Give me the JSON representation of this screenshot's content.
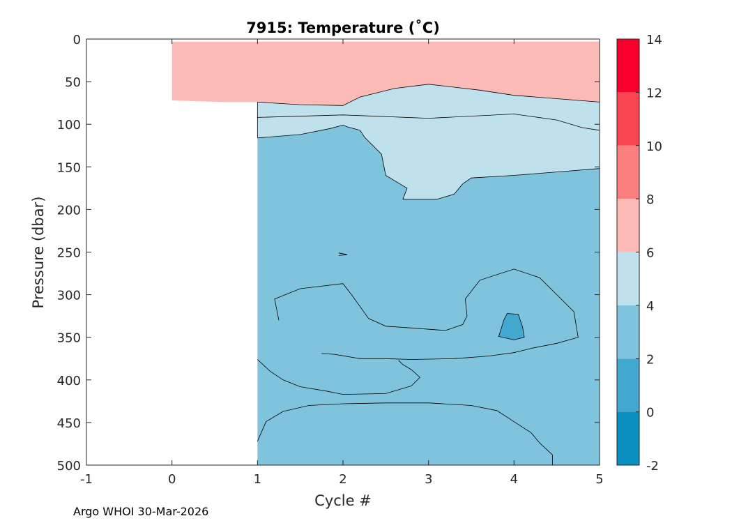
{
  "chart_data": {
    "type": "heatmap",
    "subtype": "filled-contour",
    "title": "7915:  Temperature (˚C)",
    "xlabel": "Cycle #",
    "ylabel": "Pressure (dbar)",
    "xlim": [
      -1,
      5
    ],
    "ylim": [
      0,
      500
    ],
    "y_reversed": true,
    "x_ticks": [
      "-1",
      "0",
      "1",
      "2",
      "3",
      "4",
      "5"
    ],
    "y_ticks": [
      "0",
      "50",
      "100",
      "150",
      "200",
      "250",
      "300",
      "350",
      "400",
      "450",
      "500"
    ],
    "colorbar": {
      "range": [
        -2,
        14
      ],
      "tick_labels": [
        "-2",
        "0",
        "2",
        "4",
        "6",
        "8",
        "10",
        "12",
        "14"
      ],
      "bins": [
        {
          "from": -2,
          "to": 0,
          "color": "#0a8ebf"
        },
        {
          "from": 0,
          "to": 2,
          "color": "#42a8cf"
        },
        {
          "from": 2,
          "to": 4,
          "color": "#7fc3dd"
        },
        {
          "from": 4,
          "to": 6,
          "color": "#bfe1ec"
        },
        {
          "from": 6,
          "to": 8,
          "color": "#fdbbb7"
        },
        {
          "from": 8,
          "to": 10,
          "color": "#fa7f7f"
        },
        {
          "from": 10,
          "to": 12,
          "color": "#f94550"
        },
        {
          "from": 12,
          "to": 14,
          "color": "#f7002b"
        }
      ]
    },
    "regions": [
      {
        "level": "6-8",
        "outline": [
          [
            0,
            3
          ],
          [
            5,
            3
          ],
          [
            5,
            74
          ],
          [
            4.5,
            70
          ],
          [
            4,
            66
          ],
          [
            3.6,
            60
          ],
          [
            3,
            53
          ],
          [
            2.6,
            58
          ],
          [
            2.2,
            68
          ],
          [
            2,
            78
          ],
          [
            1.5,
            77
          ],
          [
            1,
            74
          ],
          [
            0.6,
            74
          ],
          [
            0,
            72
          ]
        ]
      },
      {
        "level": "4-6",
        "outline": [
          [
            1,
            74
          ],
          [
            1.5,
            77
          ],
          [
            2,
            78
          ],
          [
            2.2,
            68
          ],
          [
            2.6,
            58
          ],
          [
            3,
            53
          ],
          [
            3.6,
            60
          ],
          [
            4,
            66
          ],
          [
            4.5,
            70
          ],
          [
            5,
            74
          ],
          [
            5,
            152
          ],
          [
            4.5,
            156
          ],
          [
            4,
            160
          ],
          [
            3.5,
            163
          ],
          [
            3.4,
            170
          ],
          [
            3.3,
            182
          ],
          [
            3.1,
            188
          ],
          [
            2.7,
            188
          ],
          [
            2.75,
            175
          ],
          [
            2.5,
            160
          ],
          [
            2.45,
            135
          ],
          [
            2.25,
            115
          ],
          [
            2.2,
            107
          ],
          [
            2.05,
            103
          ],
          [
            2,
            101
          ],
          [
            1.85,
            105
          ],
          [
            1.5,
            112
          ],
          [
            1,
            116
          ]
        ]
      },
      {
        "level": "0-2",
        "outline": [
          [
            3.92,
            322
          ],
          [
            4.05,
            323
          ],
          [
            4.1,
            338
          ],
          [
            4.12,
            350
          ],
          [
            4.0,
            353
          ],
          [
            3.82,
            349
          ],
          [
            3.85,
            340
          ],
          [
            3.88,
            330
          ]
        ]
      }
    ],
    "contour_lines": [
      {
        "level": 4,
        "points": [
          [
            1,
            92
          ],
          [
            2,
            89
          ],
          [
            3,
            93
          ],
          [
            4,
            88
          ],
          [
            4.5,
            95
          ],
          [
            4.8,
            104
          ],
          [
            5,
            107
          ]
        ]
      },
      {
        "level": 4,
        "points": [
          [
            1.25,
            330
          ],
          [
            1.2,
            305
          ],
          [
            1.5,
            293
          ],
          [
            2,
            287
          ],
          [
            2.1,
            300
          ],
          [
            2.3,
            328
          ],
          [
            2.5,
            337
          ],
          [
            2.8,
            339
          ],
          [
            3.2,
            342
          ],
          [
            3.4,
            335
          ],
          [
            3.45,
            325
          ],
          [
            3.43,
            305
          ],
          [
            3.6,
            283
          ],
          [
            4,
            270
          ],
          [
            4.3,
            280
          ],
          [
            4.5,
            300
          ],
          [
            4.7,
            320
          ],
          [
            4.75,
            350
          ],
          [
            4.5,
            357
          ],
          [
            4.2,
            363
          ],
          [
            4,
            368
          ],
          [
            3.7,
            372
          ],
          [
            3.3,
            375
          ],
          [
            2.8,
            376
          ],
          [
            2.5,
            375
          ],
          [
            2.2,
            375
          ],
          [
            1.9,
            370
          ],
          [
            1.75,
            369
          ]
        ]
      },
      {
        "level": 4,
        "points": [
          [
            1,
            376
          ],
          [
            1.15,
            390
          ],
          [
            1.3,
            400
          ],
          [
            1.5,
            408
          ],
          [
            1.8,
            413
          ],
          [
            2,
            417
          ],
          [
            2.5,
            416
          ],
          [
            2.8,
            407
          ],
          [
            2.9,
            397
          ],
          [
            2.8,
            388
          ],
          [
            2.7,
            382
          ],
          [
            2.65,
            377
          ]
        ]
      },
      {
        "level": 4,
        "points": [
          [
            1,
            472
          ],
          [
            1.1,
            449
          ],
          [
            1.3,
            437
          ],
          [
            1.6,
            430
          ],
          [
            2,
            428
          ],
          [
            2.5,
            427
          ],
          [
            3,
            427
          ],
          [
            3.5,
            430
          ],
          [
            3.8,
            436
          ],
          [
            4.0,
            449
          ],
          [
            4.2,
            462
          ],
          [
            4.3,
            474
          ],
          [
            4.45,
            488
          ],
          [
            4.45,
            500
          ]
        ]
      },
      {
        "level": 4,
        "points": [
          [
            1.95,
            251
          ],
          [
            2.05,
            253
          ],
          [
            1.95,
            254
          ]
        ]
      }
    ]
  },
  "footer": {
    "text": "Argo WHOI 30-Mar-2026"
  }
}
